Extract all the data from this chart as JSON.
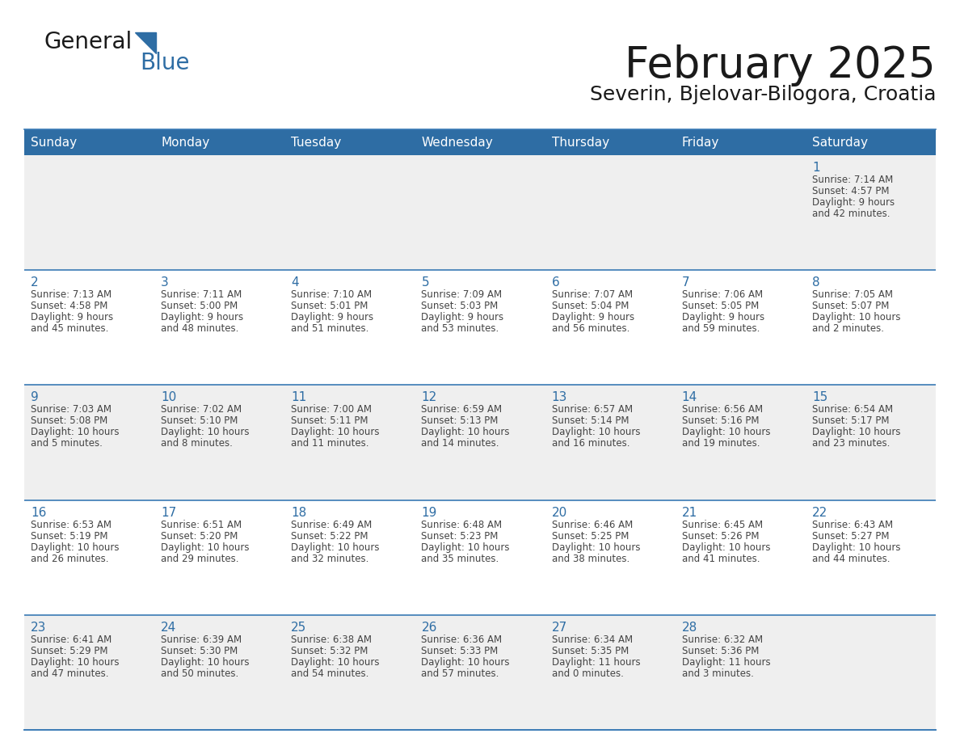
{
  "title": "February 2025",
  "subtitle": "Severin, Bjelovar-Bilogora, Croatia",
  "header_color": "#2E6DA4",
  "header_text_color": "#FFFFFF",
  "row_bg_even": "#EFEFEF",
  "row_bg_odd": "#FFFFFF",
  "text_color": "#444444",
  "day_number_color": "#2E6DA4",
  "divider_color": "#3A7AB5",
  "days_of_week": [
    "Sunday",
    "Monday",
    "Tuesday",
    "Wednesday",
    "Thursday",
    "Friday",
    "Saturday"
  ],
  "calendar_data": [
    [
      null,
      null,
      null,
      null,
      null,
      null,
      {
        "day": "1",
        "sunrise": "7:14 AM",
        "sunset": "4:57 PM",
        "daylight1": "9 hours",
        "daylight2": "and 42 minutes."
      }
    ],
    [
      {
        "day": "2",
        "sunrise": "7:13 AM",
        "sunset": "4:58 PM",
        "daylight1": "9 hours",
        "daylight2": "and 45 minutes."
      },
      {
        "day": "3",
        "sunrise": "7:11 AM",
        "sunset": "5:00 PM",
        "daylight1": "9 hours",
        "daylight2": "and 48 minutes."
      },
      {
        "day": "4",
        "sunrise": "7:10 AM",
        "sunset": "5:01 PM",
        "daylight1": "9 hours",
        "daylight2": "and 51 minutes."
      },
      {
        "day": "5",
        "sunrise": "7:09 AM",
        "sunset": "5:03 PM",
        "daylight1": "9 hours",
        "daylight2": "and 53 minutes."
      },
      {
        "day": "6",
        "sunrise": "7:07 AM",
        "sunset": "5:04 PM",
        "daylight1": "9 hours",
        "daylight2": "and 56 minutes."
      },
      {
        "day": "7",
        "sunrise": "7:06 AM",
        "sunset": "5:05 PM",
        "daylight1": "9 hours",
        "daylight2": "and 59 minutes."
      },
      {
        "day": "8",
        "sunrise": "7:05 AM",
        "sunset": "5:07 PM",
        "daylight1": "10 hours",
        "daylight2": "and 2 minutes."
      }
    ],
    [
      {
        "day": "9",
        "sunrise": "7:03 AM",
        "sunset": "5:08 PM",
        "daylight1": "10 hours",
        "daylight2": "and 5 minutes."
      },
      {
        "day": "10",
        "sunrise": "7:02 AM",
        "sunset": "5:10 PM",
        "daylight1": "10 hours",
        "daylight2": "and 8 minutes."
      },
      {
        "day": "11",
        "sunrise": "7:00 AM",
        "sunset": "5:11 PM",
        "daylight1": "10 hours",
        "daylight2": "and 11 minutes."
      },
      {
        "day": "12",
        "sunrise": "6:59 AM",
        "sunset": "5:13 PM",
        "daylight1": "10 hours",
        "daylight2": "and 14 minutes."
      },
      {
        "day": "13",
        "sunrise": "6:57 AM",
        "sunset": "5:14 PM",
        "daylight1": "10 hours",
        "daylight2": "and 16 minutes."
      },
      {
        "day": "14",
        "sunrise": "6:56 AM",
        "sunset": "5:16 PM",
        "daylight1": "10 hours",
        "daylight2": "and 19 minutes."
      },
      {
        "day": "15",
        "sunrise": "6:54 AM",
        "sunset": "5:17 PM",
        "daylight1": "10 hours",
        "daylight2": "and 23 minutes."
      }
    ],
    [
      {
        "day": "16",
        "sunrise": "6:53 AM",
        "sunset": "5:19 PM",
        "daylight1": "10 hours",
        "daylight2": "and 26 minutes."
      },
      {
        "day": "17",
        "sunrise": "6:51 AM",
        "sunset": "5:20 PM",
        "daylight1": "10 hours",
        "daylight2": "and 29 minutes."
      },
      {
        "day": "18",
        "sunrise": "6:49 AM",
        "sunset": "5:22 PM",
        "daylight1": "10 hours",
        "daylight2": "and 32 minutes."
      },
      {
        "day": "19",
        "sunrise": "6:48 AM",
        "sunset": "5:23 PM",
        "daylight1": "10 hours",
        "daylight2": "and 35 minutes."
      },
      {
        "day": "20",
        "sunrise": "6:46 AM",
        "sunset": "5:25 PM",
        "daylight1": "10 hours",
        "daylight2": "and 38 minutes."
      },
      {
        "day": "21",
        "sunrise": "6:45 AM",
        "sunset": "5:26 PM",
        "daylight1": "10 hours",
        "daylight2": "and 41 minutes."
      },
      {
        "day": "22",
        "sunrise": "6:43 AM",
        "sunset": "5:27 PM",
        "daylight1": "10 hours",
        "daylight2": "and 44 minutes."
      }
    ],
    [
      {
        "day": "23",
        "sunrise": "6:41 AM",
        "sunset": "5:29 PM",
        "daylight1": "10 hours",
        "daylight2": "and 47 minutes."
      },
      {
        "day": "24",
        "sunrise": "6:39 AM",
        "sunset": "5:30 PM",
        "daylight1": "10 hours",
        "daylight2": "and 50 minutes."
      },
      {
        "day": "25",
        "sunrise": "6:38 AM",
        "sunset": "5:32 PM",
        "daylight1": "10 hours",
        "daylight2": "and 54 minutes."
      },
      {
        "day": "26",
        "sunrise": "6:36 AM",
        "sunset": "5:33 PM",
        "daylight1": "10 hours",
        "daylight2": "and 57 minutes."
      },
      {
        "day": "27",
        "sunrise": "6:34 AM",
        "sunset": "5:35 PM",
        "daylight1": "11 hours",
        "daylight2": "and 0 minutes."
      },
      {
        "day": "28",
        "sunrise": "6:32 AM",
        "sunset": "5:36 PM",
        "daylight1": "11 hours",
        "daylight2": "and 3 minutes."
      },
      null
    ]
  ]
}
